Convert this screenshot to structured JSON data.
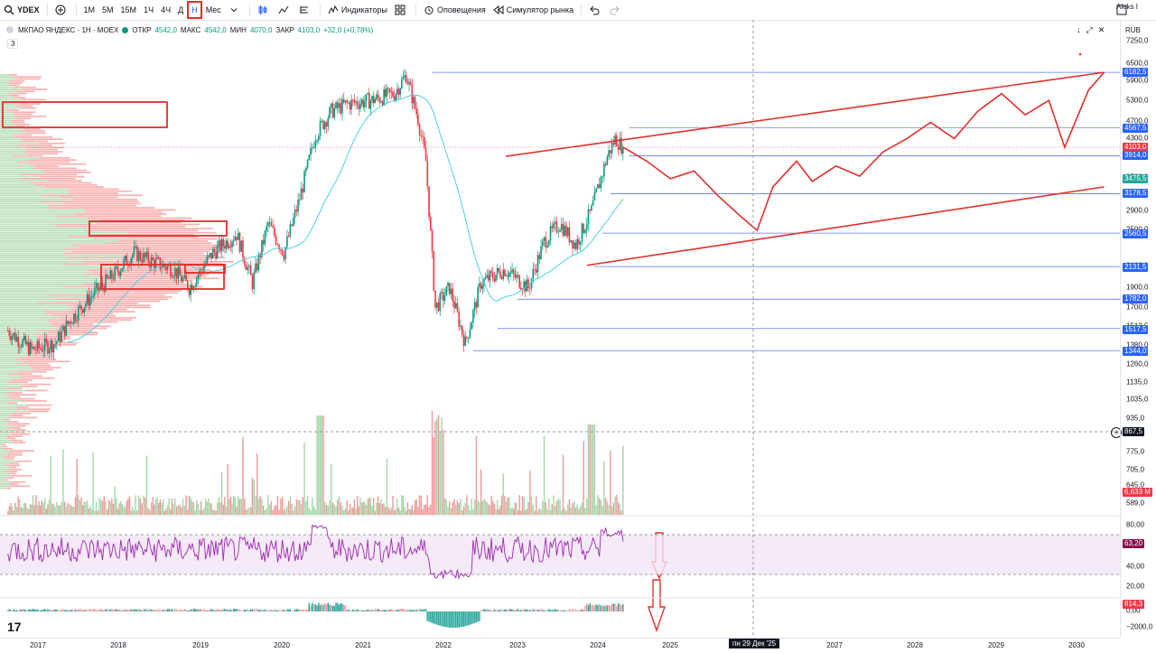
{
  "toolbar": {
    "symbol": "YDEX",
    "intervals": [
      "1М",
      "5М",
      "15М",
      "1Ч",
      "4Ч",
      "Д",
      "Н",
      "Мес"
    ],
    "active_interval": "Н",
    "indicators_label": "Индикаторы",
    "alerts_label": "Оповещения",
    "replay_label": "Симулятор рынка",
    "user_name": "Aleks I"
  },
  "legend": {
    "name": "МКПАО ЯНДЕКС · 1Н · MOEX",
    "o_label": "ОТКР",
    "o": "4542,0",
    "h_label": "МАКС",
    "h": "4542,0",
    "l_label": "МИН",
    "l": "4070,0",
    "c_label": "ЗАКР",
    "c": "4103,0",
    "change": "+32,0 (+0,78%)",
    "indicator_count": "3"
  },
  "scale": {
    "currency": "RUB",
    "ticks": [
      "7250,0",
      "6500,0",
      "5900,0",
      "5300,0",
      "4700,0",
      "4300,0",
      "3500,0",
      "2900,0",
      "2500,0",
      "2100,0",
      "1900,0",
      "1700,0",
      "1512,5",
      "1380,0",
      "1260,0",
      "1135,0",
      "1035,0",
      "935,0",
      "775,0",
      "705,0",
      "645,0",
      "589,0",
      "80,00",
      "40,00",
      "20,00",
      "0,00",
      "−2000,0"
    ],
    "badges": [
      {
        "text": "6182,5",
        "kind": "blue"
      },
      {
        "text": "4567,5",
        "kind": "blue"
      },
      {
        "text": "4103,0",
        "kind": "red"
      },
      {
        "text": "3914,0",
        "kind": "blue"
      },
      {
        "text": "3475,5",
        "kind": "teal"
      },
      {
        "text": "3178,5",
        "kind": "blue"
      },
      {
        "text": "2560,5",
        "kind": "blue"
      },
      {
        "text": "2131,5",
        "kind": "blue"
      },
      {
        "text": "1782,0",
        "kind": "blue"
      },
      {
        "text": "1517,5",
        "kind": "blue"
      },
      {
        "text": "1344,0",
        "kind": "blue"
      },
      {
        "text": "867,5",
        "kind": "dark"
      },
      {
        "text": "6,633 M",
        "kind": "red"
      },
      {
        "text": "63,20",
        "kind": "purple"
      },
      {
        "text": "814,3",
        "kind": "red"
      }
    ]
  },
  "time_axis": {
    "labels": [
      "2017",
      "2018",
      "2019",
      "2020",
      "2021",
      "2022",
      "2023",
      "2024",
      "2025",
      "2027",
      "2028",
      "2029",
      "2030"
    ],
    "crosshair_label": "пн 29 Дек '25"
  },
  "chart_data": {
    "type": "candlestick",
    "symbol": "YDEX",
    "interval": "1W",
    "y_scale": "log",
    "ylim": [
      589,
      7250
    ],
    "x_range": [
      2016.6,
      2030.8
    ],
    "approx_close_path": [
      [
        2016.7,
        1500
      ],
      [
        2017.0,
        1350
      ],
      [
        2017.3,
        1400
      ],
      [
        2017.5,
        1600
      ],
      [
        2017.8,
        1850
      ],
      [
        2018.0,
        2000
      ],
      [
        2018.3,
        2300
      ],
      [
        2018.5,
        2200
      ],
      [
        2018.8,
        2100
      ],
      [
        2019.0,
        1900
      ],
      [
        2019.3,
        2300
      ],
      [
        2019.6,
        2550
      ],
      [
        2019.8,
        1950
      ],
      [
        2020.0,
        2700
      ],
      [
        2020.2,
        2300
      ],
      [
        2020.4,
        3100
      ],
      [
        2020.6,
        4400
      ],
      [
        2020.8,
        5000
      ],
      [
        2021.0,
        5200
      ],
      [
        2021.3,
        5300
      ],
      [
        2021.6,
        5500
      ],
      [
        2021.75,
        6100
      ],
      [
        2021.9,
        4800
      ],
      [
        2022.0,
        3800
      ],
      [
        2022.12,
        1700
      ],
      [
        2022.3,
        1900
      ],
      [
        2022.5,
        1400
      ],
      [
        2022.7,
        1950
      ],
      [
        2023.0,
        2100
      ],
      [
        2023.3,
        1900
      ],
      [
        2023.5,
        2450
      ],
      [
        2023.7,
        2700
      ],
      [
        2023.9,
        2400
      ],
      [
        2024.1,
        2900
      ],
      [
        2024.3,
        3900
      ],
      [
        2024.4,
        4300
      ],
      [
        2024.5,
        4103
      ]
    ],
    "horizontal_levels": [
      6182.5,
      4567.5,
      3914.0,
      3178.5,
      2560.5,
      2131.5,
      1782.0,
      1517.5,
      1344.0
    ],
    "moving_average_last": 3475.5,
    "last_price": 4103.0,
    "projection_path": [
      [
        2024.5,
        4103
      ],
      [
        2024.8,
        3800
      ],
      [
        2025.1,
        3450
      ],
      [
        2025.4,
        3600
      ],
      [
        2025.7,
        3150
      ],
      [
        2026.0,
        2800
      ],
      [
        2026.2,
        2600
      ],
      [
        2026.4,
        3300
      ],
      [
        2026.7,
        3800
      ],
      [
        2026.9,
        3400
      ],
      [
        2027.2,
        3700
      ],
      [
        2027.5,
        3500
      ],
      [
        2027.8,
        4000
      ],
      [
        2028.1,
        4300
      ],
      [
        2028.4,
        4700
      ],
      [
        2028.7,
        4300
      ],
      [
        2029.0,
        5000
      ],
      [
        2029.3,
        5500
      ],
      [
        2029.6,
        4900
      ],
      [
        2029.9,
        5300
      ],
      [
        2030.1,
        4100
      ],
      [
        2030.4,
        5600
      ],
      [
        2030.6,
        6182.5
      ]
    ],
    "channel_upper": [
      [
        2023.9,
        4000
      ],
      [
        2030.6,
        6182.5
      ]
    ],
    "channel_lower": [
      [
        2023.8,
        2200
      ],
      [
        2030.6,
        3300
      ]
    ],
    "volume_last": "6,633 M",
    "rsi_last": 63.2,
    "rsi_bands": [
      30,
      70
    ],
    "macd_last": 814.3,
    "annotation_boxes": 4,
    "down_arrows": 2
  }
}
